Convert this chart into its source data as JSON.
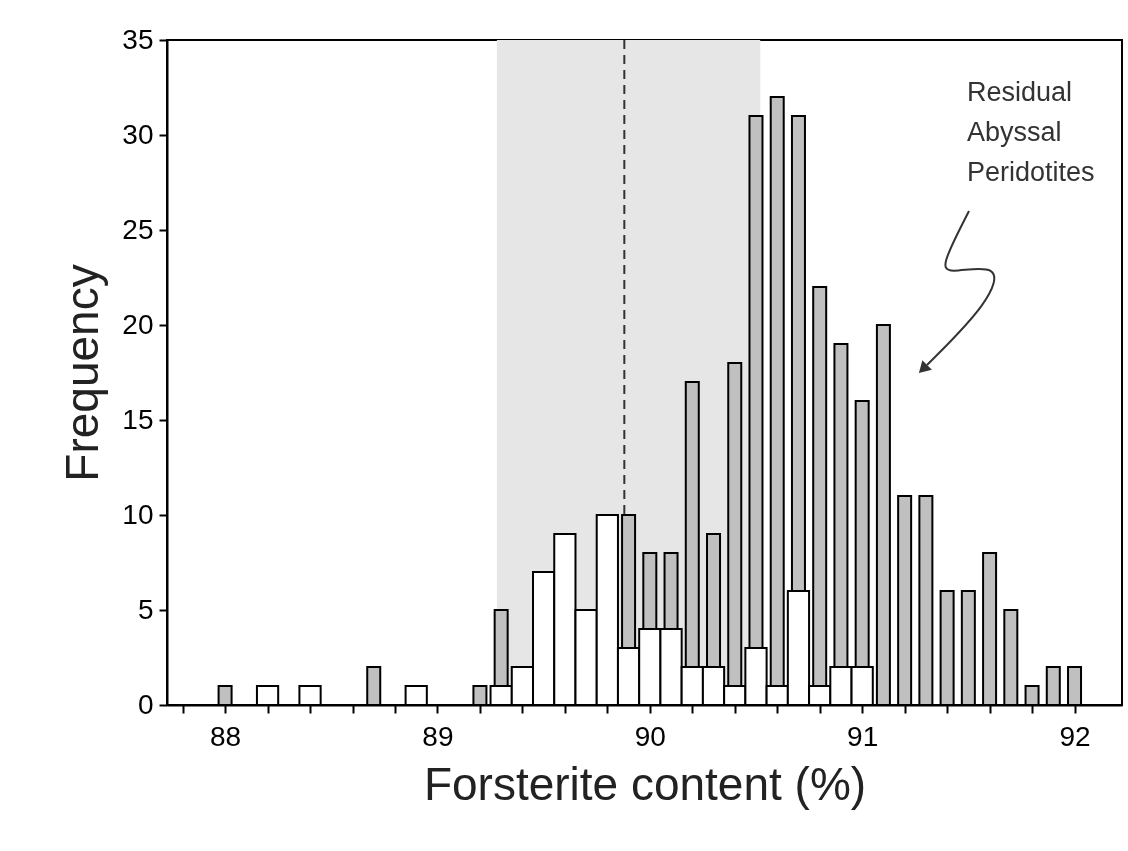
{
  "chart_data": {
    "type": "histogram",
    "xlabel": "Forsterite content (%)",
    "ylabel": "Frequency",
    "bins": [
      87.95,
      88.05,
      88.15,
      88.25,
      88.35,
      88.45,
      88.55,
      88.65,
      88.75,
      88.85,
      88.95,
      89.05,
      89.15,
      89.25,
      89.35,
      89.45,
      89.55,
      89.65,
      89.75,
      89.85,
      89.95,
      90.05,
      90.15,
      90.25,
      90.35,
      90.45,
      90.55,
      90.65,
      90.75,
      90.85,
      90.95,
      91.05,
      91.15,
      91.25,
      91.35,
      91.45,
      91.55,
      91.65,
      91.75,
      91.85,
      91.95,
      92.05
    ],
    "series": [
      {
        "name": "Residual Abyssal Peridotites",
        "color": "#c0c0c0",
        "values": [
          1,
          null,
          null,
          null,
          null,
          null,
          null,
          2,
          null,
          null,
          null,
          null,
          1,
          5,
          null,
          null,
          null,
          null,
          null,
          10,
          8,
          8,
          17,
          9,
          18,
          31,
          32,
          31,
          22,
          19,
          16,
          20,
          11,
          11,
          6,
          6,
          8,
          5,
          1,
          2,
          2
        ]
      },
      {
        "color": "#ffffff",
        "values": [
          null,
          null,
          1,
          null,
          1,
          null,
          null,
          null,
          null,
          1,
          null,
          null,
          null,
          1,
          2,
          7,
          9,
          5,
          10,
          3,
          4,
          4,
          2,
          2,
          1,
          3,
          1,
          6,
          1,
          2,
          2,
          null,
          null,
          null,
          null,
          null,
          null,
          null,
          null,
          null,
          null
        ]
      }
    ],
    "xlim": [
      87.75,
      92.2
    ],
    "ylim": [
      0,
      35
    ],
    "xticks": [
      {
        "value": 87.8,
        "label": null
      },
      88,
      {
        "value": 88.2,
        "label": null
      },
      {
        "value": 88.4,
        "label": null
      },
      {
        "value": 88.6,
        "label": null
      },
      {
        "value": 88.8,
        "label": null
      },
      89,
      {
        "value": 89.2,
        "label": null
      },
      {
        "value": 89.4,
        "label": null
      },
      {
        "value": 89.6,
        "label": null
      },
      {
        "value": 89.8,
        "label": null
      },
      90,
      {
        "value": 90.2,
        "label": null
      },
      {
        "value": 90.4,
        "label": null
      },
      {
        "value": 90.6,
        "label": null
      },
      {
        "value": 90.8,
        "label": null
      },
      91,
      {
        "value": 91.2,
        "label": null
      },
      {
        "value": 91.4,
        "label": null
      },
      {
        "value": 91.6,
        "label": null
      },
      {
        "value": 91.8,
        "label": null
      },
      92
    ],
    "yticks": [
      0,
      5,
      10,
      15,
      20,
      25,
      30,
      35
    ],
    "bands": [
      {
        "axis": "x",
        "from": 89.28,
        "to": 90.52,
        "color": "#e6e6e6"
      }
    ],
    "ref_lines": [
      {
        "axis": "x",
        "value": 89.88,
        "color": "#333333",
        "line_style": "dashed"
      }
    ],
    "grid": false
  }
}
